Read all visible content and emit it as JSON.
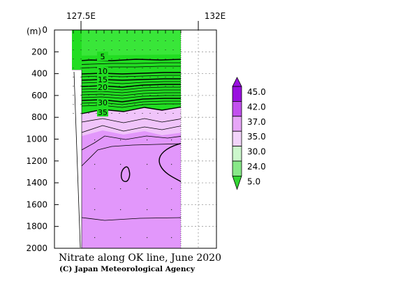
{
  "chart_data": {
    "type": "heatmap",
    "title": "Nitrate along OK line, June 2020",
    "credit": "(C) Japan Meteorological Agency",
    "x_ticks": [
      "127.5E",
      "132E"
    ],
    "y_unit": "(m)",
    "y_ticks": [
      0,
      200,
      400,
      600,
      800,
      1000,
      1200,
      1400,
      1600,
      1800,
      2000
    ],
    "ylim": [
      0,
      2000
    ],
    "grid": true,
    "contour_labels": [
      5,
      10,
      15,
      20,
      30,
      35
    ],
    "colorbar": {
      "labels": [
        "45.0",
        "42.0",
        "37.0",
        "35.0",
        "30.0",
        "24.0",
        "5.0"
      ],
      "colors": [
        "#9a10e0",
        "#c250ee",
        "#e7a6f7",
        "#f2d4fa",
        "#ccf7cc",
        "#88e888",
        "#33d633"
      ],
      "extend": [
        "min",
        "max"
      ]
    },
    "data_colors": {
      "low": "#22dd22",
      "deep": "#e297fb",
      "mid": "#f0c4fa"
    }
  }
}
